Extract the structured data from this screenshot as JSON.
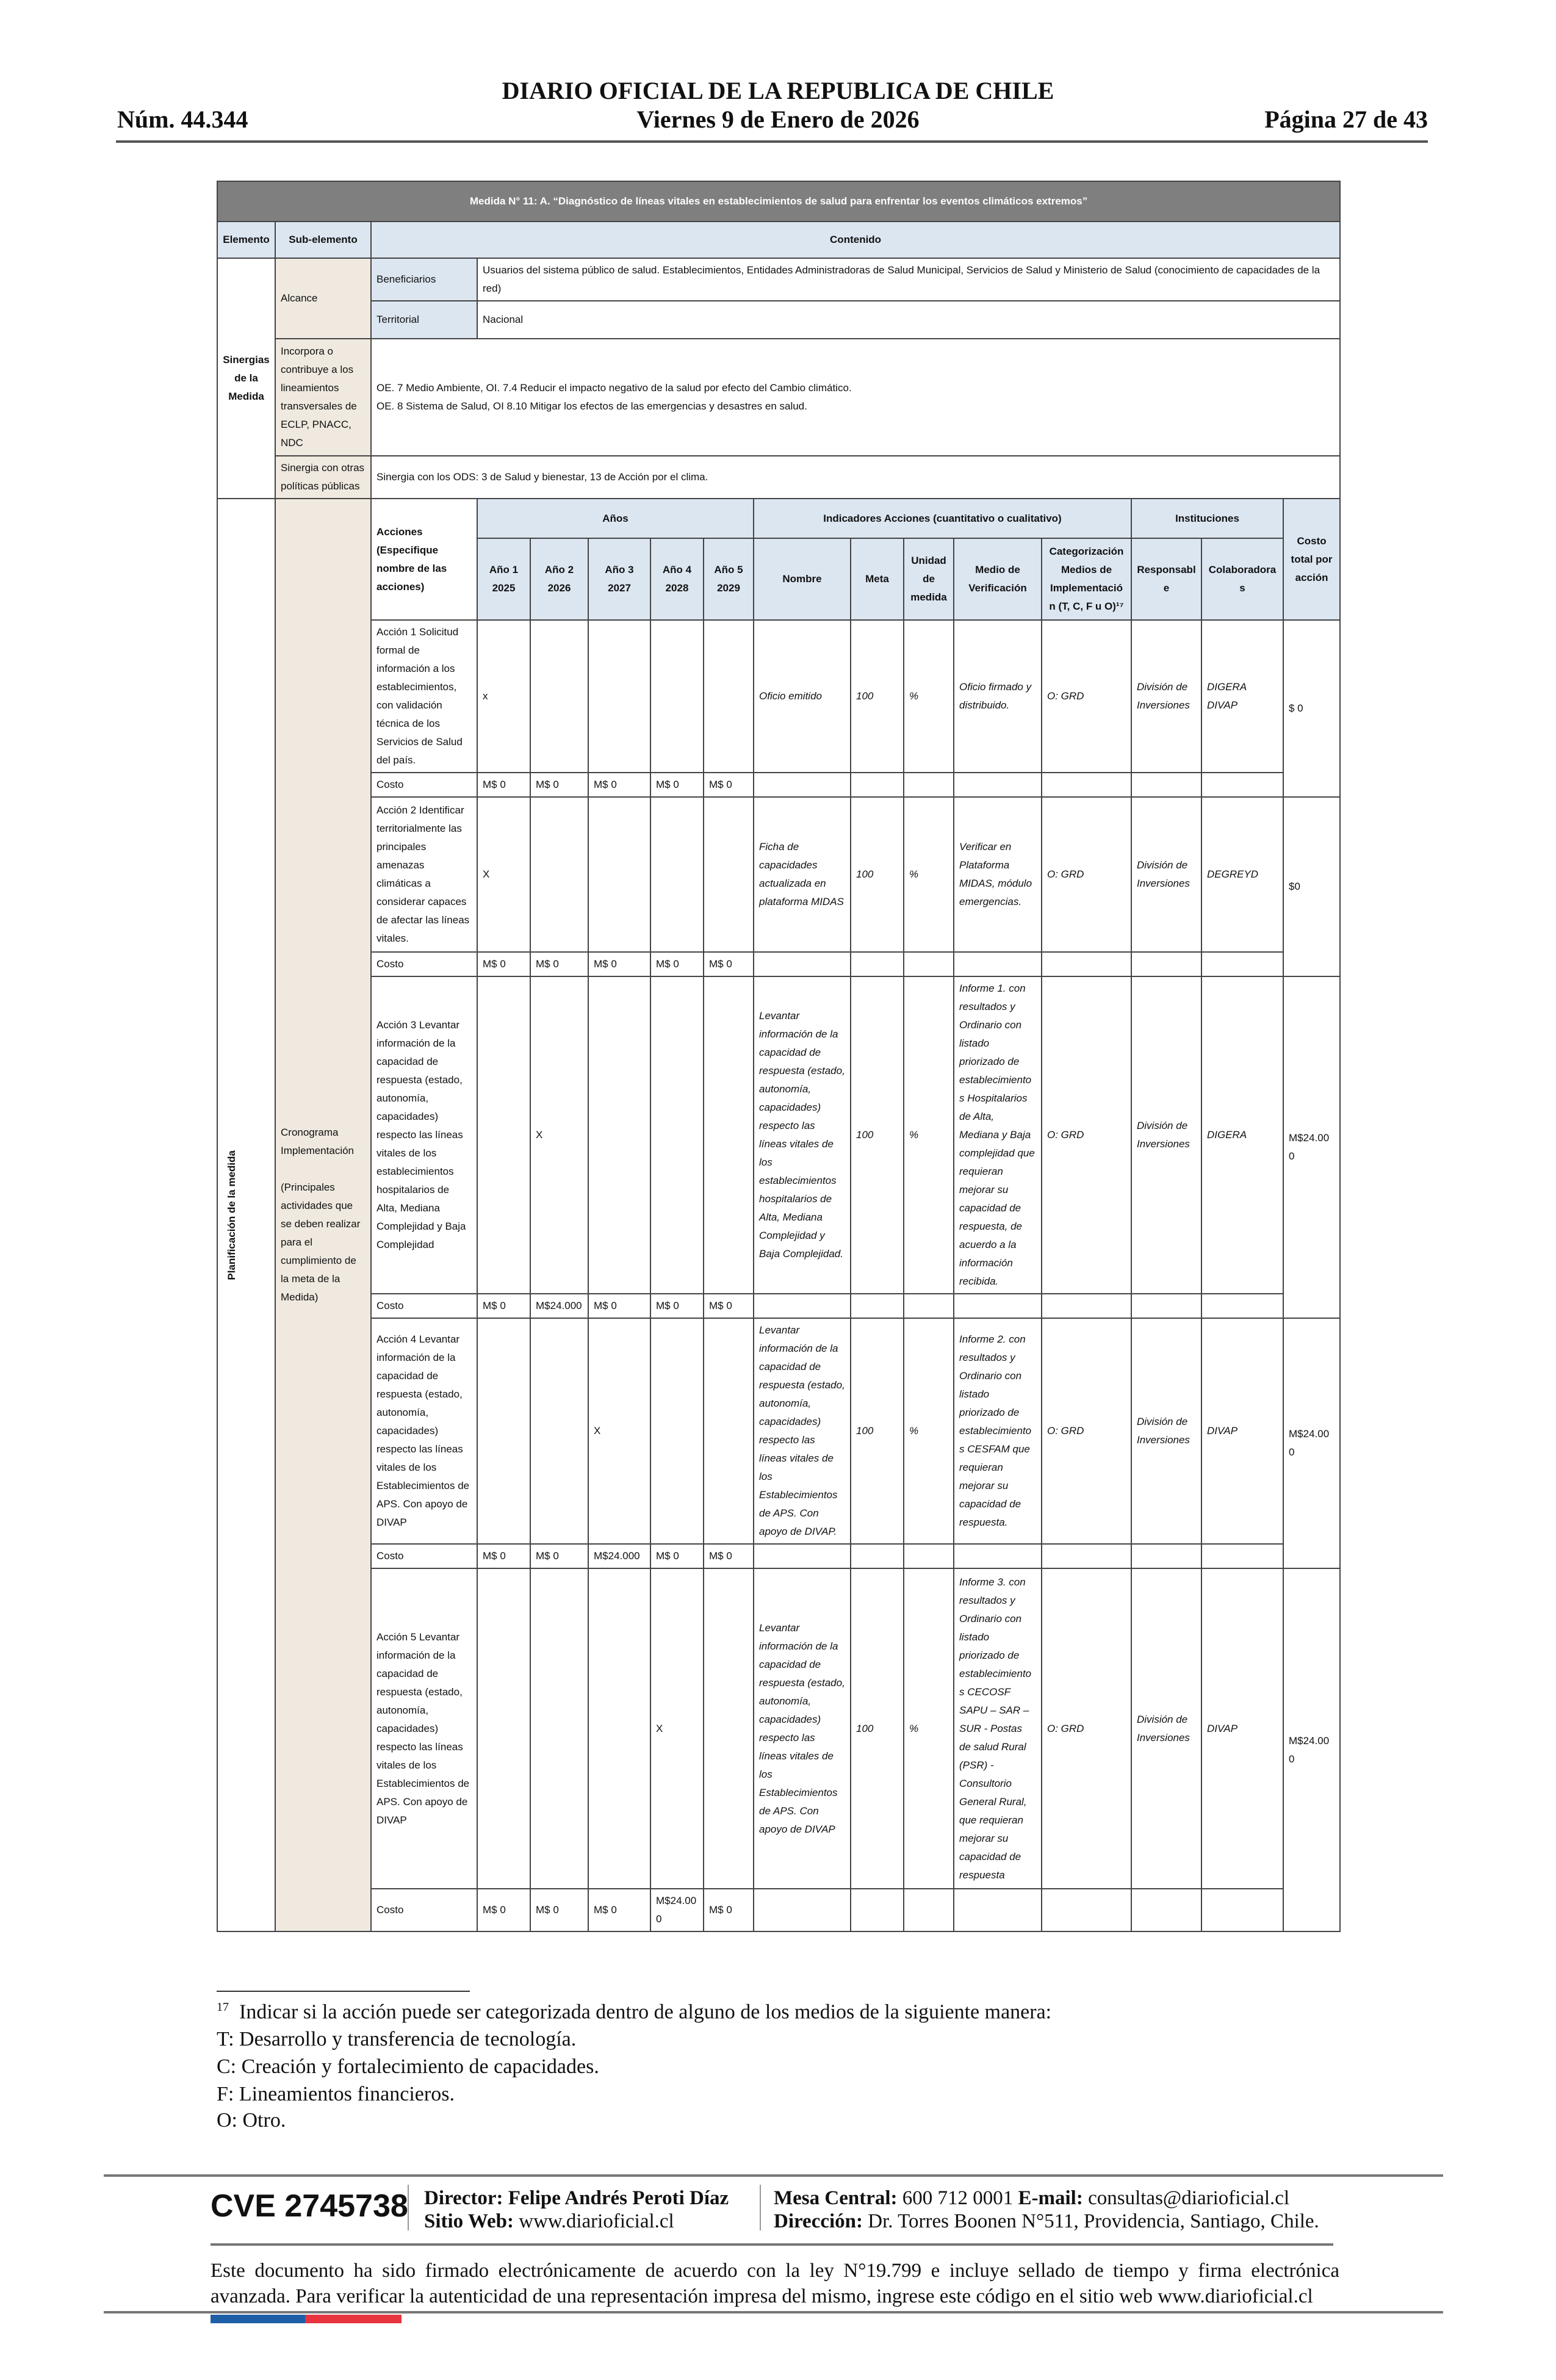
{
  "header": {
    "number": "Núm. 44.344",
    "title": "DIARIO OFICIAL DE LA REPUBLICA DE CHILE",
    "date": "Viernes 9 de Enero de 2026",
    "page": "Página 27 de 43"
  },
  "table": {
    "title": "Medida N° 11: A. “Diagnóstico de líneas vitales en establecimientos de salud para enfrentar los eventos climáticos extremos”",
    "col_elemento": "Elemento",
    "col_subelemento": "Sub-elemento",
    "col_contenido": "Contenido",
    "sinergias": "Sinergias de la Medida",
    "alcance": "Alcance",
    "beneficiarios_label": "Beneficiarios",
    "beneficiarios": "Usuarios del sistema público de salud. Establecimientos, Entidades Administradoras de Salud Municipal, Servicios de Salud y Ministerio de Salud (conocimiento de capacidades de la red)",
    "territorial_label": "Territorial",
    "territorial": "Nacional",
    "incorpora_label": "Incorpora o contribuye a los lineamientos transversales de ECLP, PNACC, NDC",
    "incorpora_1": "OE. 7 Medio Ambiente, OI. 7.4 Reducir el impacto negativo de la salud por efecto del Cambio climático.",
    "incorpora_2": "OE. 8 Sistema de Salud, OI 8.10 Mitigar los efectos de las emergencias y desastres en salud.",
    "sinergia_label": "Sinergia con otras políticas públicas",
    "sinergia": "Sinergia con los ODS: 3 de Salud y bienestar, 13 de Acción por el clima.",
    "planificacion": "Planificación de la medida",
    "cronograma": "Cronograma Implementación",
    "cronograma_note": "(Principales actividades que se deben realizar para el cumplimiento de la meta de la Medida)",
    "acciones_header": "Acciones (Especifique nombre de las acciones)",
    "anos": "Años",
    "indicadores": "Indicadores Acciones (cuantitativo o cualitativo)",
    "instituciones": "Instituciones",
    "costo_total": "Costo total por acción",
    "years": [
      "Año 1 2025",
      "Año 2 2026",
      "Año 3 2027",
      "Año 4 2028",
      "Año 5 2029"
    ],
    "ind_cols": [
      "Nombre",
      "Meta",
      "Unidad de medida",
      "Medio de Verificación",
      "Categorización Medios de Implementación (T, C, F u O)¹⁷"
    ],
    "inst_cols": [
      "Responsable",
      "Colaboradoras"
    ],
    "costo_label": "Costo",
    "actions": [
      {
        "text": "Acción 1 Solicitud formal de información a los establecimientos, con validación técnica de los Servicios de Salud del país.",
        "marks": [
          "x",
          "",
          "",
          "",
          ""
        ],
        "nombre": "Oficio emitido",
        "meta": "100",
        "unidad": "%",
        "medio": "Oficio firmado y distribuido.",
        "cat": "O: GRD",
        "resp": "División de Inversiones",
        "colab": "DIGERA DIVAP",
        "total": "$ 0",
        "costs": [
          "M$ 0",
          "M$ 0",
          "M$ 0",
          "M$ 0",
          "M$ 0"
        ]
      },
      {
        "text": "Acción 2 Identificar territorialmente las principales amenazas climáticas a considerar capaces de afectar las líneas vitales.",
        "marks": [
          "X",
          "",
          "",
          "",
          ""
        ],
        "nombre": "Ficha de capacidades actualizada en plataforma MIDAS",
        "meta": "100",
        "unidad": "%",
        "medio": "Verificar en Plataforma MIDAS, módulo emergencias.",
        "cat": "O: GRD",
        "resp": "División de Inversiones",
        "colab": "DEGREYD",
        "total": "$0",
        "costs": [
          "M$ 0",
          "M$ 0",
          "M$ 0",
          "M$ 0",
          "M$ 0"
        ]
      },
      {
        "text": "Acción 3 Levantar información de la capacidad de respuesta (estado, autonomía, capacidades) respecto las líneas vitales de los establecimientos hospitalarios de Alta, Mediana Complejidad y Baja Complejidad",
        "marks": [
          "",
          "X",
          "",
          "",
          ""
        ],
        "nombre": "Levantar información de la capacidad de respuesta (estado, autonomía, capacidades) respecto las líneas vitales de los establecimientos hospitalarios de Alta, Mediana Complejidad y Baja Complejidad.",
        "meta": "100",
        "unidad": "%",
        "medio": "Informe 1. con resultados y Ordinario con listado priorizado de establecimientos Hospitalarios de Alta, Mediana y Baja complejidad que requieran mejorar su capacidad de respuesta, de acuerdo a la información recibida.",
        "cat": "O: GRD",
        "resp": "División de Inversiones",
        "colab": "DIGERA",
        "total": "M$24.000",
        "costs": [
          "M$ 0",
          "M$24.000",
          "M$ 0",
          "M$ 0",
          "M$ 0"
        ]
      },
      {
        "text": "Acción 4 Levantar información de la capacidad de respuesta (estado, autonomía, capacidades) respecto las líneas vitales de los Establecimientos de APS. Con apoyo de DIVAP",
        "marks": [
          "",
          "",
          "X",
          "",
          ""
        ],
        "nombre": "Levantar información de la capacidad de respuesta (estado, autonomía, capacidades) respecto las líneas vitales de los Establecimientos de APS. Con apoyo de DIVAP.",
        "meta": "100",
        "unidad": "%",
        "medio": "Informe 2. con resultados y Ordinario con listado priorizado de establecimientos CESFAM que requieran mejorar su capacidad de respuesta.",
        "cat": "O: GRD",
        "resp": "División de Inversiones",
        "colab": "DIVAP",
        "total": "M$24.000",
        "costs": [
          "M$ 0",
          "M$ 0",
          "M$24.000",
          "M$ 0",
          "M$ 0"
        ]
      },
      {
        "text": "Acción 5 Levantar información de la capacidad de respuesta (estado, autonomía, capacidades) respecto las líneas vitales de los Establecimientos de APS. Con apoyo de DIVAP",
        "marks": [
          "",
          "",
          "",
          "X",
          ""
        ],
        "nombre": "Levantar información de la capacidad de respuesta (estado, autonomía, capacidades) respecto las líneas vitales de los Establecimientos de APS. Con apoyo de DIVAP",
        "meta": "100",
        "unidad": "%",
        "medio": "Informe 3. con resultados y Ordinario con listado priorizado de establecimientos CECOSF SAPU – SAR – SUR - Postas de salud Rural (PSR) - Consultorio General Rural, que requieran mejorar su capacidad de respuesta",
        "cat": "O: GRD",
        "resp": "División de Inversiones",
        "colab": "DIVAP",
        "total": "M$24.000",
        "costs": [
          "M$ 0",
          "M$ 0",
          "M$ 0",
          "M$24.000",
          "M$ 0"
        ]
      }
    ]
  },
  "footnote": {
    "number": "17",
    "lines": [
      "Indicar si la acción puede ser categorizada dentro de alguno de los medios de la siguiente manera:",
      "T: Desarrollo y transferencia de tecnología.",
      "C: Creación y fortalecimiento de capacidades.",
      "F: Lineamientos financieros.",
      "O: Otro."
    ]
  },
  "footer": {
    "cve": "CVE 2745738",
    "director_label": "Director:",
    "director": "Felipe Andrés Peroti Díaz",
    "web_label": "Sitio Web:",
    "web": "www.diarioficial.cl",
    "mesa_label": "Mesa Central:",
    "mesa": "600 712 0001",
    "email_label": "E-mail:",
    "email": "consultas@diarioficial.cl",
    "dir_label": "Dirección:",
    "dir": "Dr. Torres Boonen N°511, Providencia, Santiago, Chile.",
    "notice": "Este documento ha sido firmado electrónicamente de acuerdo con la ley N°19.799 e incluye sellado de tiempo y firma electrónica avanzada. Para verificar la autenticidad de una representación impresa del mismo, ingrese este código en el sitio web www.diarioficial.cl",
    "flag_colors": [
      "#1f5fa8",
      "#e8343f"
    ]
  }
}
